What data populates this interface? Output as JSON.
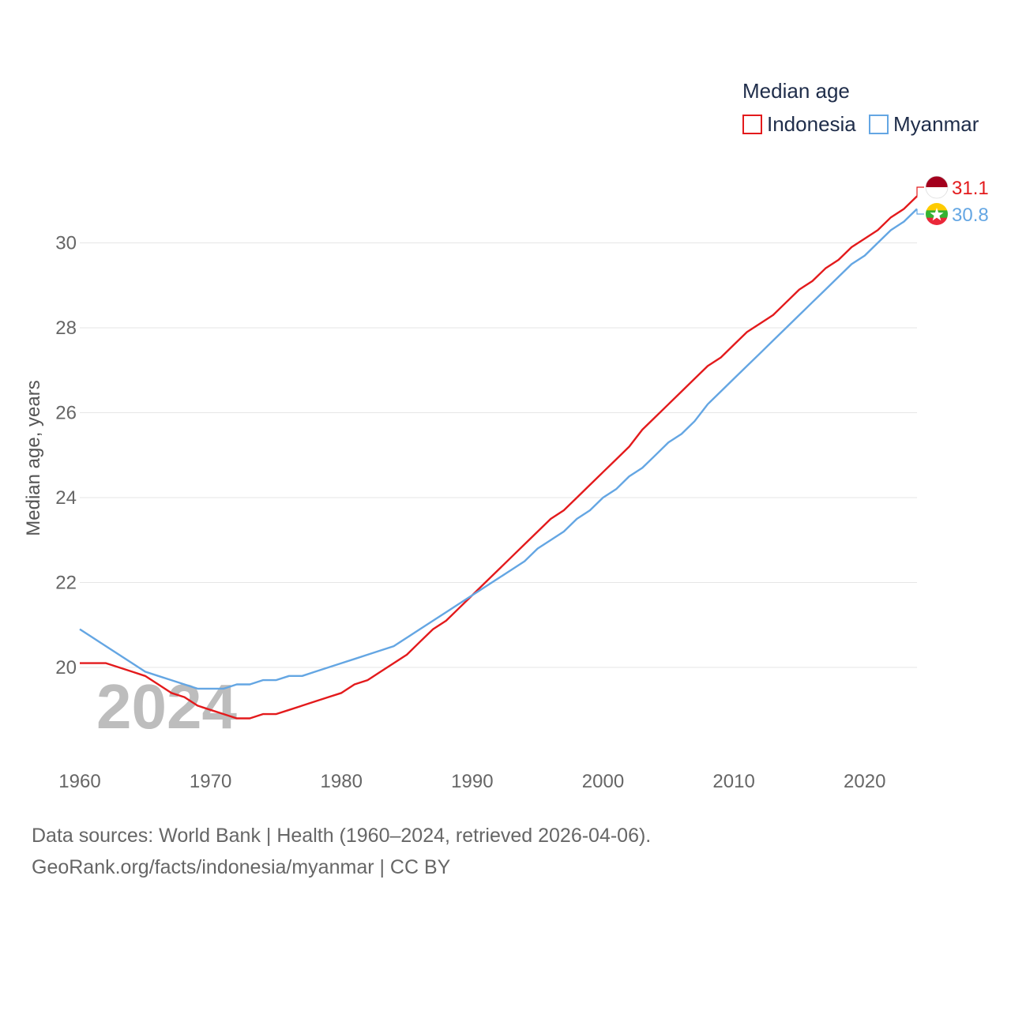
{
  "chart_data": {
    "type": "line",
    "ylabel": "Median age, years",
    "xlabel": "",
    "xlim": [
      1960,
      2024
    ],
    "ylim": [
      18,
      32
    ],
    "yticks": [
      20,
      22,
      24,
      26,
      28,
      30
    ],
    "xticks": [
      1960,
      1970,
      1980,
      1990,
      2000,
      2010,
      2020
    ],
    "grid": "horizontal",
    "legend_title": "Median age",
    "legend_position": "top-right",
    "watermark_year": "2024",
    "x": [
      1960,
      1961,
      1962,
      1963,
      1964,
      1965,
      1966,
      1967,
      1968,
      1969,
      1970,
      1971,
      1972,
      1973,
      1974,
      1975,
      1976,
      1977,
      1978,
      1979,
      1980,
      1981,
      1982,
      1983,
      1984,
      1985,
      1986,
      1987,
      1988,
      1989,
      1990,
      1991,
      1992,
      1993,
      1994,
      1995,
      1996,
      1997,
      1998,
      1999,
      2000,
      2001,
      2002,
      2003,
      2004,
      2005,
      2006,
      2007,
      2008,
      2009,
      2010,
      2011,
      2012,
      2013,
      2014,
      2015,
      2016,
      2017,
      2018,
      2019,
      2020,
      2021,
      2022,
      2023,
      2024
    ],
    "series": [
      {
        "name": "Indonesia",
        "color": "#e31a1c",
        "end_label": "31.1",
        "flag": "indonesia-flag",
        "values": [
          20.1,
          20.1,
          20.1,
          20.0,
          19.9,
          19.8,
          19.6,
          19.4,
          19.3,
          19.1,
          19.0,
          18.9,
          18.8,
          18.8,
          18.9,
          18.9,
          19.0,
          19.1,
          19.2,
          19.3,
          19.4,
          19.6,
          19.7,
          19.9,
          20.1,
          20.3,
          20.6,
          20.9,
          21.1,
          21.4,
          21.7,
          22.0,
          22.3,
          22.6,
          22.9,
          23.2,
          23.5,
          23.7,
          24.0,
          24.3,
          24.6,
          24.9,
          25.2,
          25.6,
          25.9,
          26.2,
          26.5,
          26.8,
          27.1,
          27.3,
          27.6,
          27.9,
          28.1,
          28.3,
          28.6,
          28.9,
          29.1,
          29.4,
          29.6,
          29.9,
          30.1,
          30.3,
          30.6,
          30.8,
          31.1
        ]
      },
      {
        "name": "Myanmar",
        "color": "#64a6e3",
        "end_label": "30.8",
        "flag": "myanmar-flag",
        "values": [
          20.9,
          20.7,
          20.5,
          20.3,
          20.1,
          19.9,
          19.8,
          19.7,
          19.6,
          19.5,
          19.5,
          19.5,
          19.6,
          19.6,
          19.7,
          19.7,
          19.8,
          19.8,
          19.9,
          20.0,
          20.1,
          20.2,
          20.3,
          20.4,
          20.5,
          20.7,
          20.9,
          21.1,
          21.3,
          21.5,
          21.7,
          21.9,
          22.1,
          22.3,
          22.5,
          22.8,
          23.0,
          23.2,
          23.5,
          23.7,
          24.0,
          24.2,
          24.5,
          24.7,
          25.0,
          25.3,
          25.5,
          25.8,
          26.2,
          26.5,
          26.8,
          27.1,
          27.4,
          27.7,
          28.0,
          28.3,
          28.6,
          28.9,
          29.2,
          29.5,
          29.7,
          30.0,
          30.3,
          30.5,
          30.8
        ]
      }
    ]
  },
  "footer": {
    "line1": "Data sources: World Bank | Health (1960–2024, retrieved 2026-04-06).",
    "line2": "GeoRank.org/facts/indonesia/myanmar | CC BY"
  }
}
